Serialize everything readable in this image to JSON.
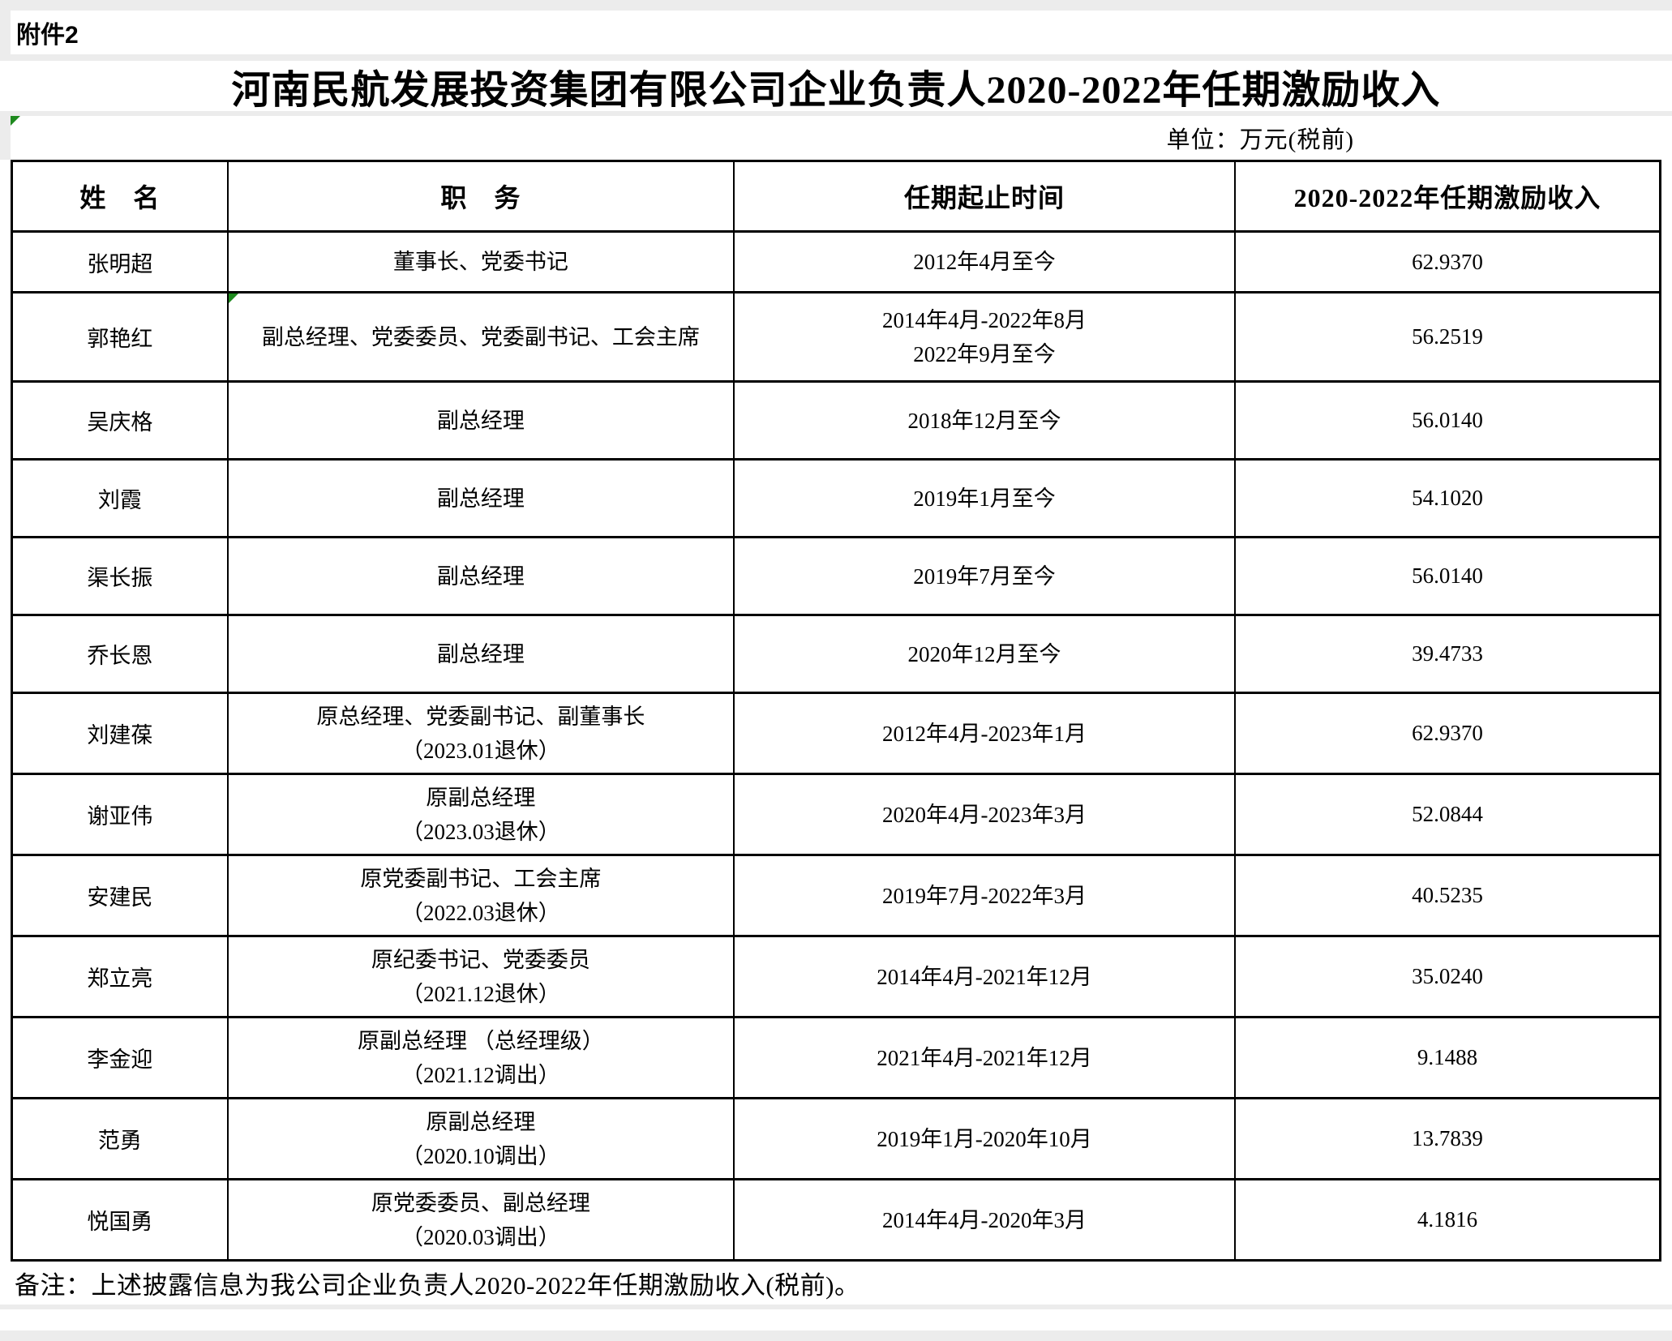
{
  "page": {
    "attachment_label": "附件2",
    "title": "河南民航发展投资集团有限公司企业负责人2020-2022年任期激励收入",
    "unit_label": "单位：万元(税前)",
    "note": "备注：上述披露信息为我公司企业负责人2020-2022年任期激励收入(税前)。"
  },
  "colors": {
    "cell_error_marker": "#1e8a1e",
    "table_border": "#000000",
    "margin_gray": "#ececec"
  },
  "table": {
    "headers": [
      "姓　名",
      "职　务",
      "任期起止时间",
      "2020-2022年任期激励收入"
    ],
    "rows": [
      {
        "name": "张明超",
        "position": [
          "董事长、党委书记"
        ],
        "term": [
          "2012年4月至今"
        ],
        "income": "62.9370",
        "marker": false
      },
      {
        "name": "郭艳红",
        "position": [
          "副总经理、党委委员、党委副书记、工会主席"
        ],
        "term": [
          "2014年4月-2022年8月",
          "2022年9月至今"
        ],
        "income": "56.2519",
        "marker": true
      },
      {
        "name": "吴庆格",
        "position": [
          "副总经理"
        ],
        "term": [
          "2018年12月至今"
        ],
        "income": "56.0140",
        "marker": false
      },
      {
        "name": "刘霞",
        "position": [
          "副总经理"
        ],
        "term": [
          "2019年1月至今"
        ],
        "income": "54.1020",
        "marker": false
      },
      {
        "name": "渠长振",
        "position": [
          "副总经理"
        ],
        "term": [
          "2019年7月至今"
        ],
        "income": "56.0140",
        "marker": false
      },
      {
        "name": "乔长恩",
        "position": [
          "副总经理"
        ],
        "term": [
          "2020年12月至今"
        ],
        "income": "39.4733",
        "marker": false
      },
      {
        "name": "刘建葆",
        "position": [
          "原总经理、党委副书记、副董事长",
          "（2023.01退休）"
        ],
        "term": [
          "2012年4月-2023年1月"
        ],
        "income": "62.9370",
        "marker": false
      },
      {
        "name": "谢亚伟",
        "position": [
          "原副总经理",
          "（2023.03退休）"
        ],
        "term": [
          "2020年4月-2023年3月"
        ],
        "income": "52.0844",
        "marker": false
      },
      {
        "name": "安建民",
        "position": [
          "原党委副书记、工会主席",
          "（2022.03退休）"
        ],
        "term": [
          "2019年7月-2022年3月"
        ],
        "income": "40.5235",
        "marker": false
      },
      {
        "name": "郑立亮",
        "position": [
          "原纪委书记、党委委员",
          "（2021.12退休）"
        ],
        "term": [
          "2014年4月-2021年12月"
        ],
        "income": "35.0240",
        "marker": false
      },
      {
        "name": "李金迎",
        "position": [
          "原副总经理 （总经理级）",
          "（2021.12调出）"
        ],
        "term": [
          "2021年4月-2021年12月"
        ],
        "income": "9.1488",
        "marker": false
      },
      {
        "name": "范勇",
        "position": [
          "原副总经理",
          "（2020.10调出）"
        ],
        "term": [
          "2019年1月-2020年10月"
        ],
        "income": "13.7839",
        "marker": false
      },
      {
        "name": "悦国勇",
        "position": [
          "原党委委员、副总经理",
          "（2020.03调出）"
        ],
        "term": [
          "2014年4月-2020年3月"
        ],
        "income": "4.1816",
        "marker": false
      }
    ]
  }
}
